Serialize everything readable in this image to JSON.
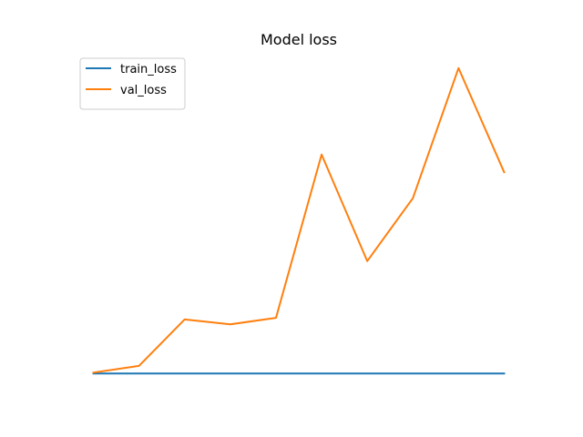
{
  "chart_data": {
    "type": "line",
    "title": "Model loss",
    "xlabel": "",
    "ylabel": "",
    "x": [
      0,
      1,
      2,
      3,
      4,
      5,
      6,
      7,
      8,
      9
    ],
    "series": [
      {
        "name": "train_loss",
        "color": "#1f77b4",
        "values": [
          0,
          0,
          0,
          0,
          0,
          0,
          0,
          0,
          0,
          0
        ]
      },
      {
        "name": "val_loss",
        "color": "#ff7f0e",
        "values": [
          0.3,
          2.5,
          17.7,
          16.1,
          18.2,
          71.7,
          36.8,
          57.4,
          100,
          65.9
        ]
      }
    ],
    "xlim": [
      -0.45,
      9.45
    ],
    "ylim": [
      -5,
      105
    ],
    "axes_visible": false,
    "grid": false,
    "legend": "upper-left"
  }
}
